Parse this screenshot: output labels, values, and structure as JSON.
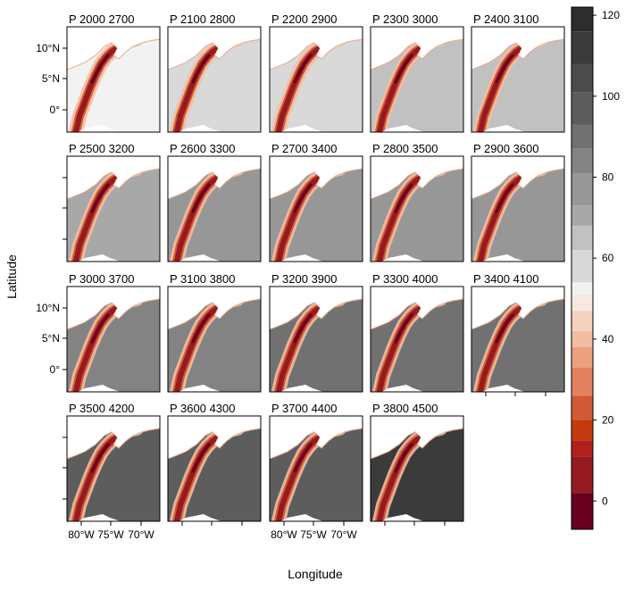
{
  "chart_data": {
    "type": "heatmap",
    "xlabel": "Longitude",
    "ylabel": "Latitude",
    "panels": [
      {
        "title": "P  2000  2700"
      },
      {
        "title": "P  2100  2800"
      },
      {
        "title": "P  2200  2900"
      },
      {
        "title": "P  2300  3000"
      },
      {
        "title": "P  2400  3100"
      },
      {
        "title": "P  2500  3200"
      },
      {
        "title": "P  2600  3300"
      },
      {
        "title": "P  2700  3400"
      },
      {
        "title": "P  2800  3500"
      },
      {
        "title": "P  2900  3600"
      },
      {
        "title": "P  3000  3700"
      },
      {
        "title": "P  3100  3800"
      },
      {
        "title": "P  3200  3900"
      },
      {
        "title": "P  3300  4000"
      },
      {
        "title": "P  3400  4100"
      },
      {
        "title": "P  3500  4200"
      },
      {
        "title": "P  3600  4300"
      },
      {
        "title": "P  3700  4400"
      },
      {
        "title": "P  3800  4500"
      }
    ],
    "x_ticks": [
      "80°W",
      "75°W",
      "70°W"
    ],
    "y_ticks": [
      "10°N",
      "5°N",
      "0°"
    ],
    "colorbar": {
      "ticks": [
        "0",
        "20",
        "40",
        "60",
        "80",
        "100",
        "120"
      ],
      "range": [
        -7,
        122
      ],
      "breaks": [
        -7,
        2,
        11,
        15,
        20,
        26,
        33,
        38,
        42,
        47,
        51,
        54,
        62,
        68,
        73,
        81,
        87,
        93,
        101,
        108,
        116,
        122
      ],
      "colors": [
        "#67001f",
        "#951b20",
        "#b2201c",
        "#c43a0c",
        "#d05a36",
        "#e2825e",
        "#eba07f",
        "#f2bda2",
        "#f6d1c0",
        "#f7e9e2",
        "#f2f2f2",
        "#d9d9d9",
        "#c1c1c1",
        "#a8a8a8",
        "#979797",
        "#838383",
        "#717171",
        "#5d5d5d",
        "#4b4b4b",
        "#3b3b3b",
        "#2d2d2d"
      ]
    },
    "series_background_levels": [
      52,
      55,
      58,
      63,
      66,
      70,
      73,
      76,
      78,
      80,
      84,
      85,
      87,
      88,
      90,
      93,
      95,
      100,
      108
    ]
  }
}
